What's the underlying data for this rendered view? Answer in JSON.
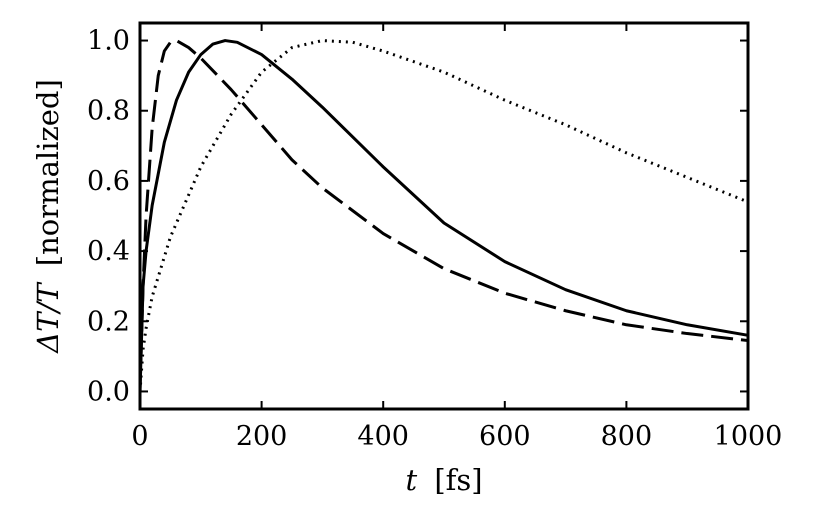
{
  "chart_data": {
    "type": "line",
    "xlabel_var": "t",
    "xlabel_unit": "[fs]",
    "ylabel_var": "ΔT/T",
    "ylabel_unit": "[normalized]",
    "xlim": [
      0,
      1000
    ],
    "ylim": [
      -0.05,
      1.05
    ],
    "xticks": [
      0,
      200,
      400,
      600,
      800,
      1000
    ],
    "yticks": [
      0.0,
      0.2,
      0.4,
      0.6,
      0.8,
      1.0
    ],
    "xtick_labels": [
      "0",
      "200",
      "400",
      "600",
      "800",
      "1000"
    ],
    "ytick_labels": [
      "0.0",
      "0.2",
      "0.4",
      "0.6",
      "0.8",
      "1.0"
    ],
    "grid": false,
    "series": [
      {
        "style": "dashed",
        "x": [
          0,
          5,
          10,
          20,
          30,
          40,
          50,
          60,
          80,
          100,
          150,
          200,
          250,
          300,
          400,
          500,
          600,
          700,
          800,
          900,
          1000
        ],
        "y": [
          0.0,
          0.3,
          0.5,
          0.75,
          0.9,
          0.97,
          0.995,
          1.0,
          0.98,
          0.95,
          0.86,
          0.76,
          0.66,
          0.58,
          0.45,
          0.35,
          0.28,
          0.23,
          0.19,
          0.165,
          0.145
        ]
      },
      {
        "style": "solid",
        "x": [
          0,
          5,
          10,
          20,
          40,
          60,
          80,
          100,
          120,
          140,
          160,
          200,
          250,
          300,
          400,
          500,
          600,
          700,
          800,
          900,
          1000
        ],
        "y": [
          0.0,
          0.3,
          0.4,
          0.53,
          0.71,
          0.83,
          0.91,
          0.96,
          0.99,
          1.0,
          0.995,
          0.96,
          0.89,
          0.81,
          0.64,
          0.48,
          0.37,
          0.29,
          0.23,
          0.19,
          0.16
        ]
      },
      {
        "style": "dotted",
        "x": [
          0,
          5,
          10,
          20,
          50,
          100,
          150,
          200,
          250,
          300,
          350,
          400,
          500,
          600,
          700,
          800,
          900,
          1000
        ],
        "y": [
          0.0,
          0.12,
          0.18,
          0.27,
          0.44,
          0.64,
          0.79,
          0.91,
          0.98,
          1.0,
          0.995,
          0.97,
          0.91,
          0.83,
          0.76,
          0.68,
          0.61,
          0.54
        ]
      }
    ]
  }
}
